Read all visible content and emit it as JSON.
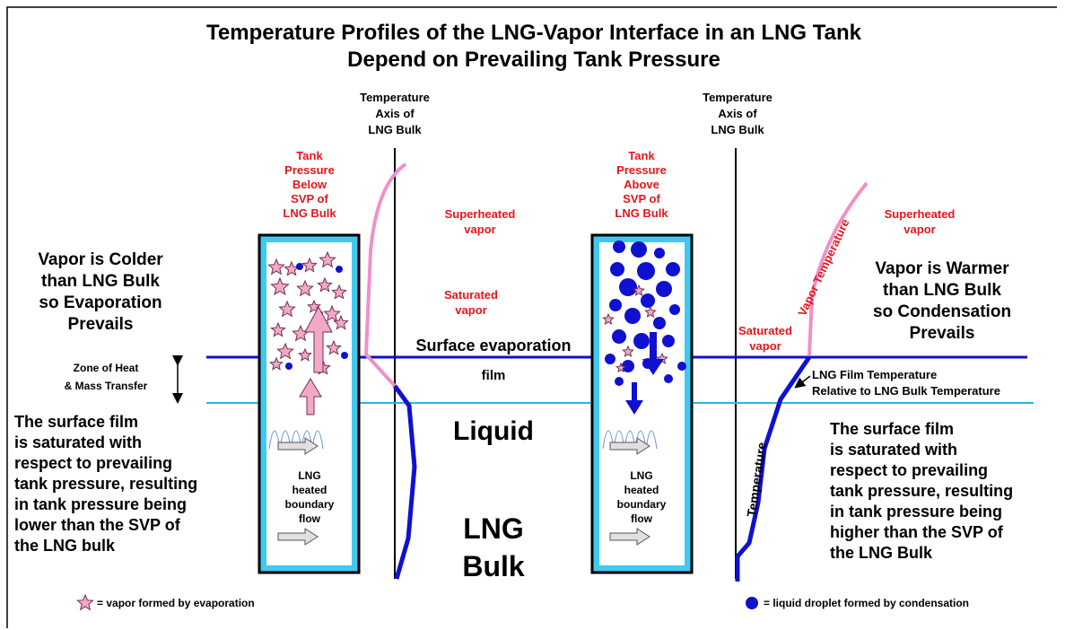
{
  "title": {
    "lines": [
      "Temperature Profiles of the LNG-Vapor Interface in an LNG Tank",
      "Depend on Prevailing Tank Pressure"
    ]
  },
  "left": {
    "axis_label": [
      "Temperature",
      "Axis of",
      "LNG Bulk"
    ],
    "pressure_label": [
      "Tank",
      "Pressure",
      "Below",
      "SVP of",
      "LNG Bulk"
    ],
    "superheated": [
      "Superheated",
      "vapor"
    ],
    "saturated": [
      "Saturated",
      "vapor"
    ],
    "headline": [
      "Vapor is Colder",
      "than LNG Bulk",
      "so Evaporation",
      "Prevails"
    ],
    "zone": [
      "Zone of Heat",
      "& Mass Transfer"
    ],
    "note": [
      "The surface film",
      "is saturated with",
      "respect to prevailing",
      "tank pressure, resulting",
      "in tank pressure being",
      "lower than the SVP of",
      "the LNG bulk"
    ],
    "flow": [
      "LNG",
      "heated",
      "boundary",
      "flow"
    ],
    "legend": "= vapor formed by evaporation"
  },
  "center": {
    "surface": "Surface evaporation",
    "film": "film",
    "liquid": "Liquid",
    "bulk": [
      "LNG",
      "Bulk"
    ]
  },
  "right": {
    "axis_label": [
      "Temperature",
      "Axis of",
      "LNG Bulk"
    ],
    "pressure_label": [
      "Tank",
      "Pressure",
      "Above",
      "SVP of",
      "LNG Bulk"
    ],
    "superheated": [
      "Superheated",
      "vapor"
    ],
    "saturated": [
      "Saturated",
      "vapor"
    ],
    "vapor_temp": "Vapor Temperature",
    "headline": [
      "Vapor is Warmer",
      "than LNG Bulk",
      "so Condensation",
      "Prevails"
    ],
    "film_temp": [
      "LNG Film Temperature",
      "Relative to LNG Bulk Temperature"
    ],
    "temperature": "Temperature",
    "note": [
      "The surface film",
      "is saturated with",
      "respect to prevailing",
      "tank pressure, resulting",
      "in tank pressure being",
      "higher than the SVP of",
      "the LNG Bulk"
    ],
    "flow": [
      "LNG",
      "heated",
      "boundary",
      "flow"
    ],
    "legend": "= liquid droplet formed by condensation"
  }
}
